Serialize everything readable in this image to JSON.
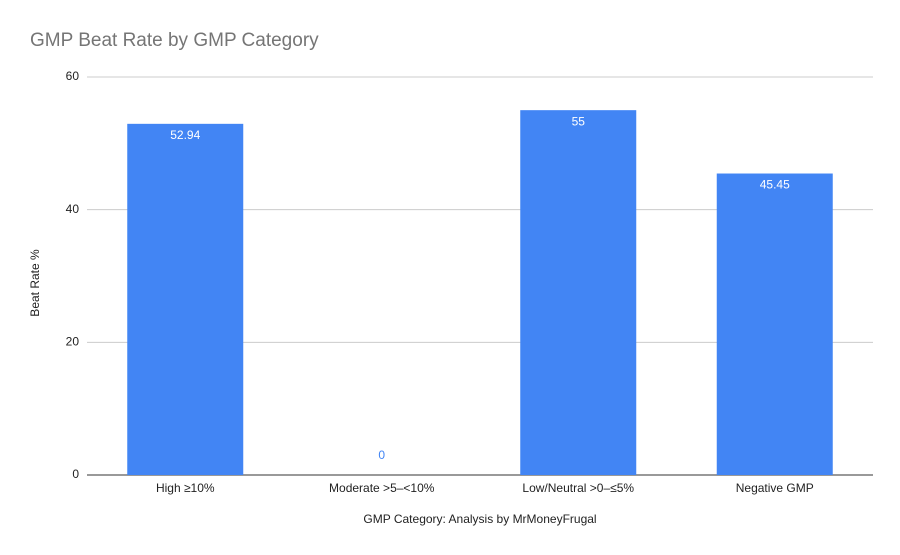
{
  "chart_data": {
    "type": "bar",
    "title": "GMP Beat Rate by GMP Category",
    "x_label": "GMP Category: Analysis by MrMoneyFrugal",
    "y_label": "Beat Rate %",
    "categories": [
      "High ≥10%",
      "Moderate >5–<10%",
      "Low/Neutral >0–≤5%",
      "Negative GMP"
    ],
    "values": [
      52.94,
      0,
      55,
      45.45
    ],
    "color": "#4285f4",
    "ylim": [
      0,
      60
    ],
    "yticks": [
      0,
      20,
      40,
      60
    ],
    "grid": true
  }
}
